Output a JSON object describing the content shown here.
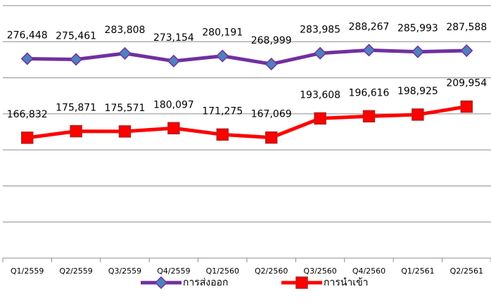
{
  "chart_data": {
    "type": "line",
    "categories": [
      "Q1/2559",
      "Q2/2559",
      "Q3/2559",
      "Q4/2559",
      "Q1/2560",
      "Q2/2560",
      "Q3/2560",
      "Q4/2560",
      "Q1/2561",
      "Q2/2561"
    ],
    "series": [
      {
        "name": "การส่งออก",
        "color": "#7030a0",
        "marker": "diamond",
        "marker_color": "#4f81bd",
        "values": [
          276448,
          275461,
          283808,
          273154,
          280191,
          268999,
          283985,
          288267,
          285993,
          287588
        ],
        "value_labels": [
          "276,448",
          "275,461",
          "283,808",
          "273,154",
          "280,191",
          "268,999",
          "283,985",
          "288,267",
          "285,993",
          "287,588"
        ]
      },
      {
        "name": "การนำเข้า",
        "color": "#ff0000",
        "marker": "square",
        "marker_color": "#ff0000",
        "values": [
          166832,
          175871,
          175571,
          180097,
          171275,
          167069,
          193608,
          196616,
          198925,
          209954
        ],
        "value_labels": [
          "166,832",
          "175,871",
          "175,571",
          "180,097",
          "171,275",
          "167,069",
          "193,608",
          "196,616",
          "198,925",
          "209,954"
        ]
      }
    ],
    "ylim": [
      0,
      350000
    ],
    "yticks": [
      0,
      50000,
      100000,
      150000,
      200000,
      250000,
      300000,
      350000
    ],
    "grid": true,
    "legend": "bottom"
  }
}
